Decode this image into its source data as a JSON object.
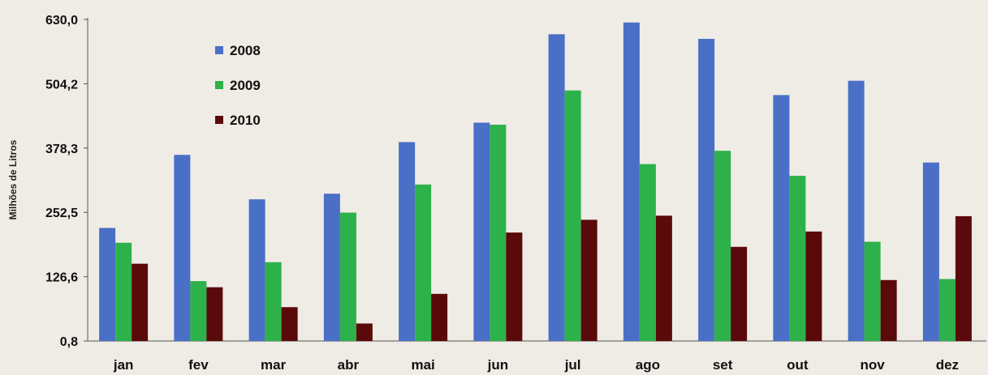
{
  "chart_data": {
    "type": "bar",
    "ylabel": "Milhões de Litros",
    "ylim": [
      0.8,
      630.0
    ],
    "yticks": [
      "630,0",
      "504,2",
      "378,3",
      "252,5",
      "126,6",
      "0,8"
    ],
    "ytick_values": [
      630.0,
      504.2,
      378.3,
      252.5,
      126.6,
      0.8
    ],
    "categories": [
      "jan",
      "fev",
      "mar",
      "abr",
      "mai",
      "jun",
      "jul",
      "ago",
      "set",
      "out",
      "nov",
      "dez"
    ],
    "legend_position": "top-left",
    "grid": false,
    "series": [
      {
        "name": "2008",
        "color": "#4a6fc7",
        "values": [
          222,
          365,
          278,
          289,
          390,
          428,
          601,
          624,
          592,
          482,
          510,
          350
        ]
      },
      {
        "name": "2009",
        "color": "#2db14a",
        "values": [
          193,
          118,
          155,
          252,
          307,
          424,
          491,
          347,
          373,
          324,
          195,
          122
        ]
      },
      {
        "name": "2010",
        "color": "#5a0a0a",
        "values": [
          152,
          106,
          67,
          35,
          93,
          213,
          238,
          246,
          185,
          215,
          120,
          245
        ]
      }
    ]
  }
}
